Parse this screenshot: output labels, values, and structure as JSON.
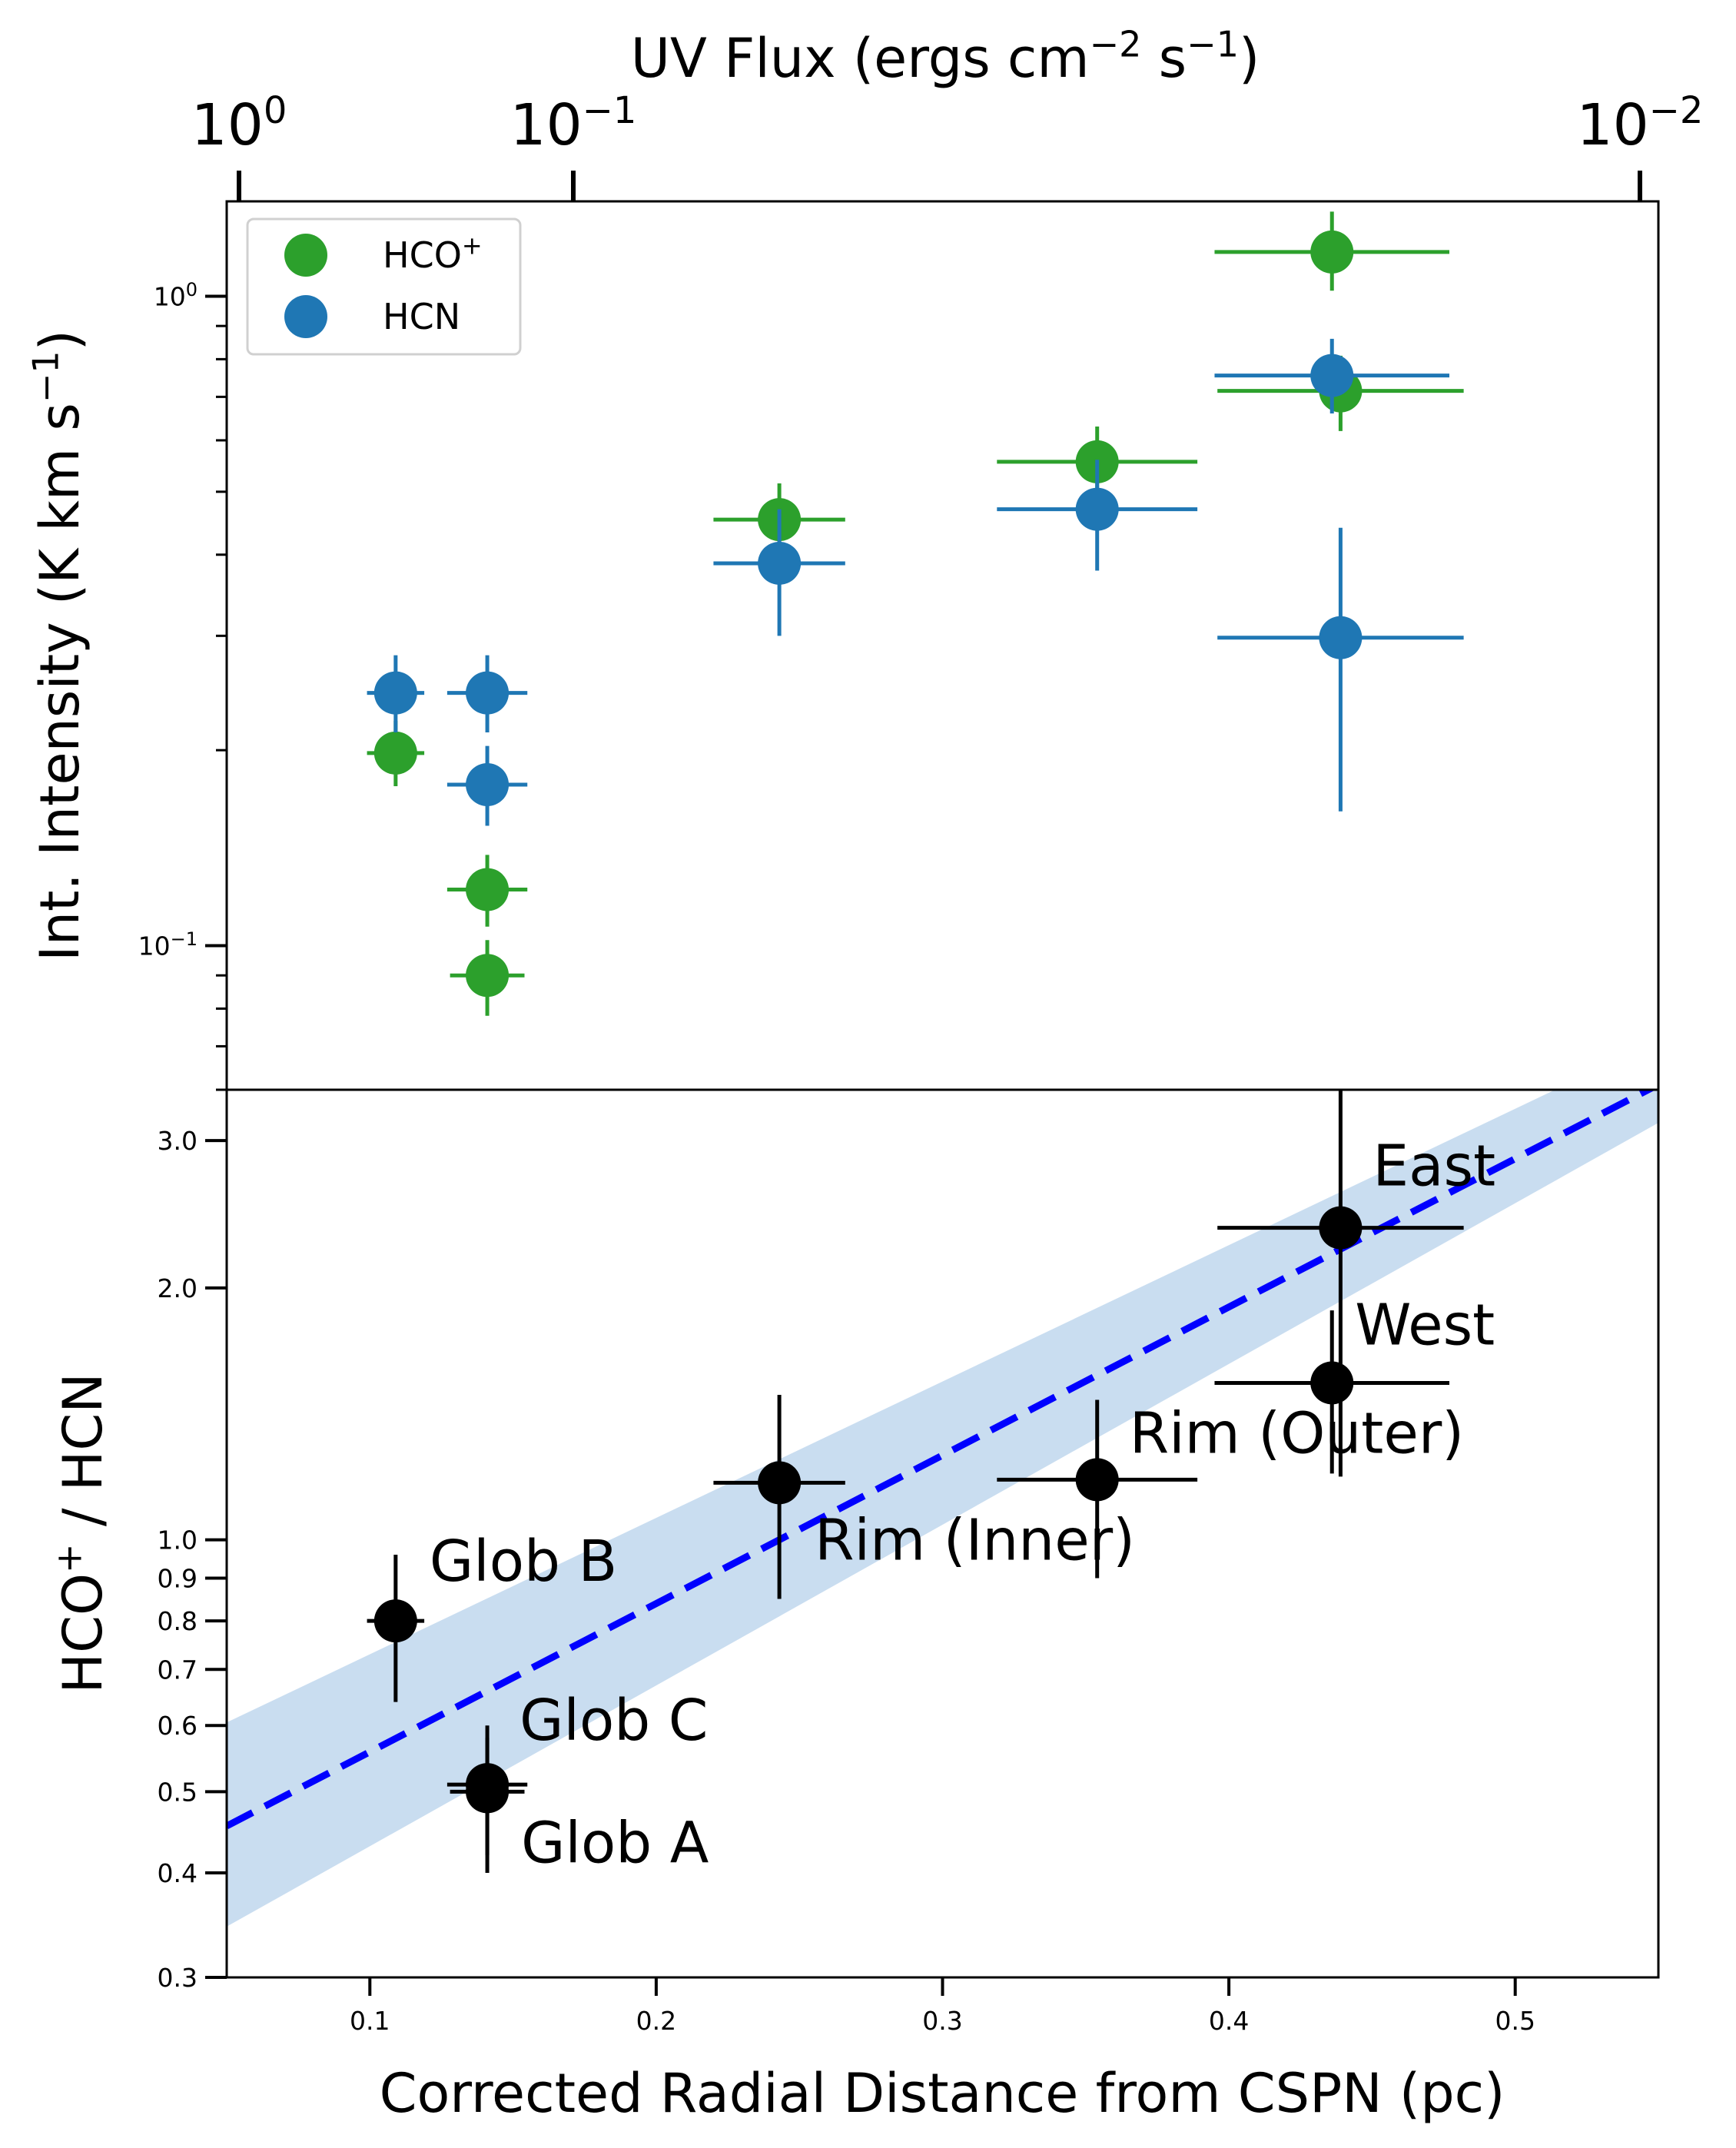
{
  "chart_data": [
    {
      "type": "scatter",
      "panel": "top",
      "xaxis_top": {
        "label": "UV Flux (ergs cm⁻² s⁻¹)",
        "label_parts": [
          "UV Flux (ergs cm",
          "−2",
          " s",
          "−1",
          ")"
        ],
        "scale": "log",
        "ticks": [
          {
            "value": 1.0,
            "base": "10",
            "exp": "0"
          },
          {
            "value": 0.1,
            "base": "10",
            "exp": "−1"
          },
          {
            "value": 0.01,
            "base": "10",
            "exp": "−2"
          }
        ]
      },
      "ylabel_parts": [
        "Int. Intensity (K km s",
        "−1",
        ")"
      ],
      "ylabel": "Int. Intensity (K km s⁻¹)",
      "yscale": "log",
      "ylim": [
        0.06,
        1.4
      ],
      "yticks": [
        {
          "value": 1.0,
          "base": "10",
          "exp": "0"
        },
        {
          "value": 0.1,
          "base": "10",
          "exp": "−1"
        }
      ],
      "legend": {
        "location": "upper-left",
        "entries": [
          {
            "label": "HCO",
            "sup": "+",
            "color": "#2ca02c"
          },
          {
            "label": "HCN",
            "sup": "",
            "color": "#1f77b4"
          }
        ]
      },
      "series": [
        {
          "name": "HCO+",
          "color": "#2ca02c",
          "points": [
            {
              "x": 0.109,
              "y": 0.198,
              "xerr": [
                0.01,
                0.01
              ],
              "yerr_low": 0.176,
              "yerr_high": 0.222
            },
            {
              "x": 0.141,
              "y": 0.122,
              "xerr": [
                0.014,
                0.014
              ],
              "yerr_low": 0.107,
              "yerr_high": 0.138
            },
            {
              "x": 0.141,
              "y": 0.09,
              "xerr": [
                0.013,
                0.013
              ],
              "yerr_low": 0.078,
              "yerr_high": 0.102
            },
            {
              "x": 0.243,
              "y": 0.453,
              "xerr": [
                0.023,
                0.023
              ],
              "yerr_low": 0.398,
              "yerr_high": 0.515
            },
            {
              "x": 0.354,
              "y": 0.556,
              "xerr": [
                0.035,
                0.035
              ],
              "yerr_low": 0.488,
              "yerr_high": 0.63
            },
            {
              "x": 0.436,
              "y": 1.17,
              "xerr": [
                0.041,
                0.041
              ],
              "yerr_low": 1.02,
              "yerr_high": 1.35
            },
            {
              "x": 0.439,
              "y": 0.715,
              "xerr": [
                0.043,
                0.043
              ],
              "yerr_low": 0.62,
              "yerr_high": 0.81
            }
          ]
        },
        {
          "name": "HCN",
          "color": "#1f77b4",
          "points": [
            {
              "x": 0.109,
              "y": 0.245,
              "xerr": [
                0.01,
                0.01
              ],
              "yerr_low": 0.213,
              "yerr_high": 0.28
            },
            {
              "x": 0.141,
              "y": 0.245,
              "xerr": [
                0.014,
                0.014
              ],
              "yerr_low": 0.213,
              "yerr_high": 0.28
            },
            {
              "x": 0.141,
              "y": 0.177,
              "xerr": [
                0.014,
                0.014
              ],
              "yerr_low": 0.153,
              "yerr_high": 0.203
            },
            {
              "x": 0.243,
              "y": 0.388,
              "xerr": [
                0.023,
                0.023
              ],
              "yerr_low": 0.3,
              "yerr_high": 0.47
            },
            {
              "x": 0.354,
              "y": 0.47,
              "xerr": [
                0.035,
                0.035
              ],
              "yerr_low": 0.378,
              "yerr_high": 0.56
            },
            {
              "x": 0.436,
              "y": 0.755,
              "xerr": [
                0.041,
                0.041
              ],
              "yerr_low": 0.66,
              "yerr_high": 0.86
            },
            {
              "x": 0.439,
              "y": 0.298,
              "xerr": [
                0.043,
                0.043
              ],
              "yerr_low": 0.161,
              "yerr_high": 0.44
            }
          ]
        }
      ]
    },
    {
      "type": "scatter",
      "panel": "bottom",
      "xlabel": "Corrected Radial Distance from CSPN (pc)",
      "xlim": [
        0.05,
        0.55
      ],
      "xticks": [
        "0.1",
        "0.2",
        "0.3",
        "0.4",
        "0.5"
      ],
      "xtick_values": [
        0.1,
        0.2,
        0.3,
        0.4,
        0.5
      ],
      "ylabel_parts": [
        "HCO",
        "+",
        "  / HCN"
      ],
      "ylabel": "HCO⁺ / HCN",
      "yscale": "log",
      "ylim": [
        0.3,
        3.45
      ],
      "yticks": [
        "0.3",
        "0.4",
        "0.5",
        "0.6",
        "0.7",
        "0.8",
        "0.9",
        "1.0",
        "2.0",
        "3.0"
      ],
      "ytick_values": [
        0.3,
        0.4,
        0.5,
        0.6,
        0.7,
        0.8,
        0.9,
        1.0,
        2.0,
        3.0
      ],
      "fit_line": {
        "style": "dashed",
        "color": "#0000ff",
        "y_at_x0": 0.455,
        "y_at_x1": 3.5,
        "x0": 0.05,
        "x1": 0.55
      },
      "confidence_band": {
        "color": "#c6dbef",
        "lower": [
          0.345,
          3.15
        ],
        "upper": [
          0.605,
          3.95
        ]
      },
      "points": [
        {
          "label": "Glob B",
          "x": 0.109,
          "y": 0.8,
          "xerr": [
            0.01,
            0.01
          ],
          "yerr_low": 0.64,
          "yerr_high": 0.96,
          "label_pos": "upper-right"
        },
        {
          "label": "Glob C",
          "x": 0.141,
          "y": 0.51,
          "xerr": [
            0.014,
            0.014
          ],
          "yerr_low": 0.42,
          "yerr_high": 0.6,
          "label_pos": "upper-right"
        },
        {
          "label": "Glob A",
          "x": 0.141,
          "y": 0.5,
          "xerr": [
            0.013,
            0.013
          ],
          "yerr_low": 0.4,
          "yerr_high": 0.58,
          "label_pos": "lower-right"
        },
        {
          "label": "Rim (Inner)",
          "x": 0.243,
          "y": 1.17,
          "xerr": [
            0.023,
            0.023
          ],
          "yerr_low": 0.85,
          "yerr_high": 1.49,
          "label_pos": "lower-right"
        },
        {
          "label": "Rim (Outer)",
          "x": 0.354,
          "y": 1.18,
          "xerr": [
            0.035,
            0.035
          ],
          "yerr_low": 0.9,
          "yerr_high": 1.47,
          "label_pos": "upper-right"
        },
        {
          "label": "West",
          "x": 0.436,
          "y": 1.54,
          "xerr": [
            0.041,
            0.041
          ],
          "yerr_low": 1.2,
          "yerr_high": 1.88,
          "label_pos": "upper-right"
        },
        {
          "label": "East",
          "x": 0.439,
          "y": 2.36,
          "xerr": [
            0.043,
            0.043
          ],
          "yerr_low": 1.19,
          "yerr_high": 3.6,
          "label_pos": "upper-right"
        }
      ]
    }
  ]
}
